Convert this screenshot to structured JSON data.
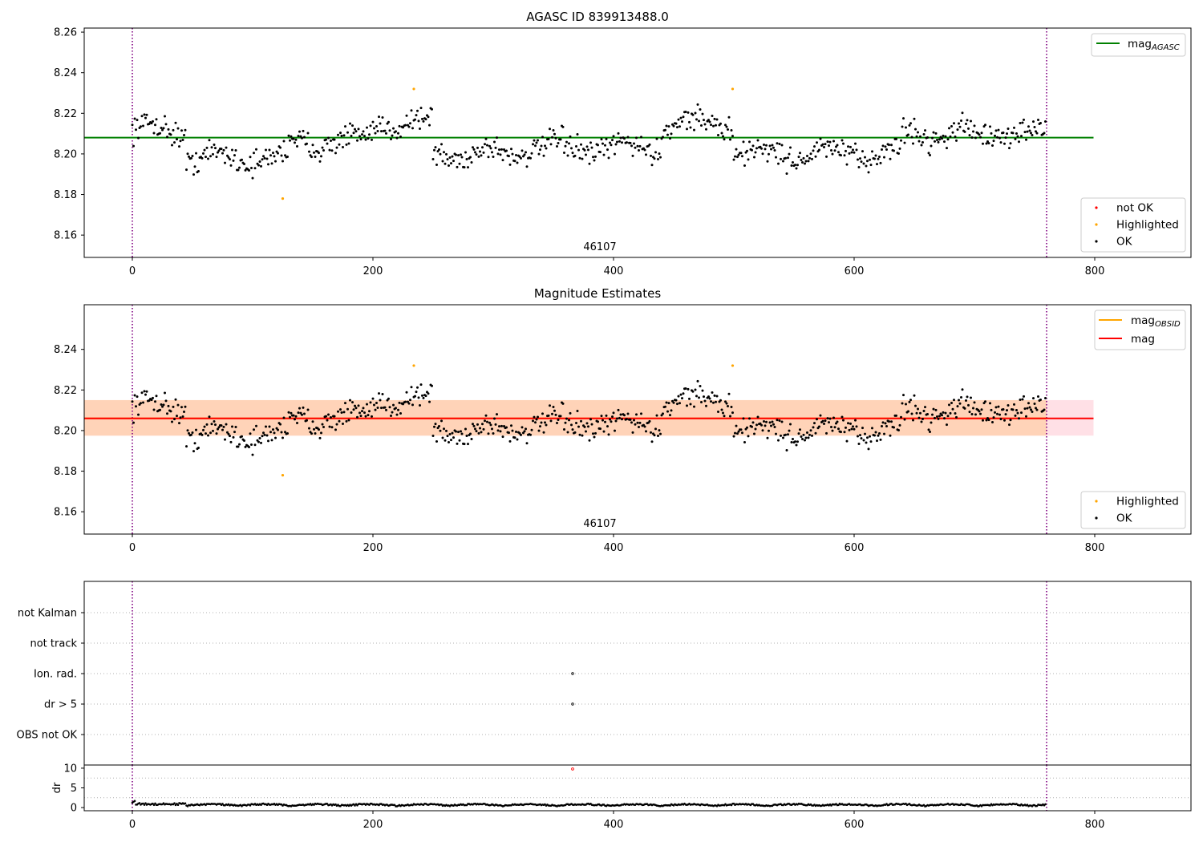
{
  "colors": {
    "axes": "#000000",
    "ok": "#000000",
    "not_ok": "#ff0000",
    "highlighted": "#ffa500",
    "mag_agasc": "#008000",
    "mag_obsid": "#ffa500",
    "mag": "#ff0000",
    "band_outer": "#ffe0e6",
    "band_inner": "#ffd3b8",
    "obs_boundary": "#800080",
    "grid": "#b0b0b0"
  },
  "chart_data": [
    {
      "id": "agasc-panel",
      "type": "scatter",
      "title": "AGASC ID 839913488.0",
      "xlim": [
        -40,
        880
      ],
      "ylim": [
        8.149,
        8.262
      ],
      "xticks": [
        0,
        200,
        400,
        600,
        800
      ],
      "yticks": [
        8.16,
        8.18,
        8.2,
        8.22,
        8.24,
        8.26
      ],
      "ytick_labels": [
        "8.16",
        "8.18",
        "8.20",
        "8.22",
        "8.24",
        "8.26"
      ],
      "obs_boundaries": [
        0,
        760
      ],
      "obsid_label": "46107",
      "obsid_label_x": 380,
      "hline": {
        "name": "mag_AGASC",
        "y": 8.208,
        "x": [
          -40,
          799
        ]
      },
      "legend_lines": [
        "mag",
        "AGASC"
      ],
      "legend_points": [
        "not OK",
        "Highlighted",
        "OK"
      ],
      "series_shape": {
        "n": 760,
        "base": 8.2055,
        "amp": 0.0055,
        "noise": 0.0065,
        "segments": [
          [
            0,
            45,
            8.212
          ],
          [
            45,
            130,
            8.198
          ],
          [
            130,
            200,
            8.206
          ],
          [
            200,
            250,
            8.215
          ],
          [
            250,
            320,
            8.2
          ],
          [
            320,
            440,
            8.203
          ],
          [
            440,
            500,
            8.215
          ],
          [
            500,
            640,
            8.2
          ],
          [
            640,
            760,
            8.21
          ]
        ]
      },
      "highlighted_points": [
        [
          125,
          8.178
        ],
        [
          234,
          8.232
        ],
        [
          499,
          8.232
        ]
      ]
    },
    {
      "id": "estimates-panel",
      "type": "scatter",
      "title": "Magnitude Estimates",
      "xlim": [
        -40,
        880
      ],
      "ylim": [
        8.149,
        8.262
      ],
      "xticks": [
        0,
        200,
        400,
        600,
        800
      ],
      "yticks": [
        8.16,
        8.18,
        8.2,
        8.22,
        8.24
      ],
      "ytick_labels": [
        "8.16",
        "8.18",
        "8.20",
        "8.22",
        "8.24"
      ],
      "obs_boundaries": [
        0,
        760
      ],
      "obsid_label": "46107",
      "obsid_label_x": 380,
      "mag": 8.206,
      "mag_obsid": 8.206,
      "band_outer": [
        8.1975,
        8.215
      ],
      "band_inner": [
        8.1975,
        8.215
      ],
      "band_x": [
        -40,
        799
      ],
      "legend_lines": [
        "mag",
        "OBSID",
        "mag"
      ],
      "legend_points": [
        "Highlighted",
        "OK"
      ],
      "highlighted_points": [
        [
          125,
          8.178
        ],
        [
          234,
          8.232
        ],
        [
          499,
          8.232
        ]
      ]
    },
    {
      "id": "flags-panel",
      "type": "scatter",
      "xlim": [
        -40,
        880
      ],
      "categories": [
        "not Kalman",
        "not track",
        "Ion. rad.",
        "dr > 5",
        "OBS not OK"
      ],
      "obs_boundaries": [
        0,
        760
      ],
      "flag_points": [
        [
          "Ion. rad.",
          366
        ],
        [
          "dr > 5",
          366
        ]
      ]
    },
    {
      "id": "dr-panel",
      "type": "scatter",
      "ylabel": "dr",
      "xlim": [
        -40,
        880
      ],
      "ylim": [
        -0.8,
        10.8
      ],
      "yticks": [
        0,
        5,
        10
      ],
      "ytick_labels": [
        "0",
        "5",
        "10"
      ],
      "xticks": [
        0,
        200,
        400,
        600,
        800
      ],
      "obs_boundaries": [
        0,
        760
      ],
      "outlier": [
        366,
        9.8
      ]
    }
  ]
}
